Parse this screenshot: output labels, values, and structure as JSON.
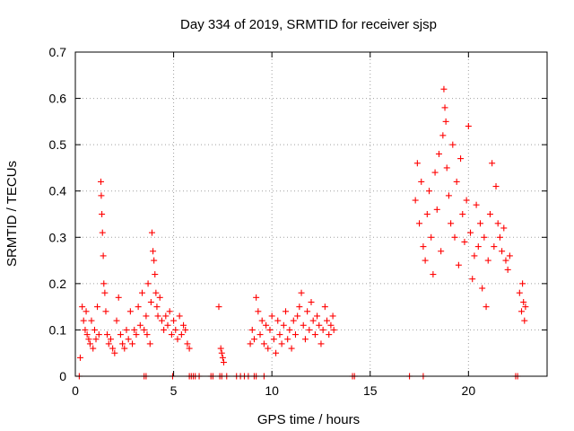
{
  "chart_data": {
    "type": "scatter",
    "title": "Day 334 of 2019, SRMTID for receiver sjsp",
    "xlabel": "GPS time / hours",
    "ylabel": "SRMTID / TECUs",
    "xlim": [
      0,
      24
    ],
    "ylim": [
      0,
      0.7
    ],
    "xticks": [
      0,
      5,
      10,
      15,
      20
    ],
    "yticks": [
      0,
      0.1,
      0.2,
      0.3,
      0.4,
      0.5,
      0.6,
      0.7
    ],
    "grid": true,
    "marker": "+",
    "series": [
      {
        "name": "SRMTID",
        "color": "#ff0000",
        "x": [
          0.25,
          0.35,
          0.42,
          0.5,
          0.55,
          0.6,
          0.68,
          0.75,
          0.82,
          0.9,
          0.98,
          1.05,
          1.12,
          1.2,
          1.3,
          1.32,
          1.35,
          1.38,
          1.42,
          1.45,
          1.5,
          1.55,
          1.62,
          1.7,
          1.8,
          1.9,
          2.0,
          2.1,
          2.2,
          2.3,
          2.4,
          2.5,
          2.6,
          2.7,
          2.8,
          2.9,
          3.0,
          3.1,
          3.2,
          3.3,
          3.4,
          3.5,
          3.6,
          3.65,
          3.7,
          3.8,
          3.85,
          3.9,
          3.95,
          4.0,
          4.05,
          4.1,
          4.15,
          4.2,
          4.3,
          4.4,
          4.5,
          4.6,
          4.7,
          4.8,
          4.9,
          5.0,
          5.1,
          5.2,
          5.3,
          5.4,
          5.5,
          5.6,
          5.7,
          5.8,
          7.3,
          7.4,
          7.45,
          7.5,
          7.55,
          8.9,
          9.0,
          9.1,
          9.2,
          9.3,
          9.4,
          9.5,
          9.6,
          9.7,
          9.8,
          9.9,
          10.0,
          10.1,
          10.2,
          10.3,
          10.4,
          10.5,
          10.6,
          10.7,
          10.8,
          10.9,
          11.0,
          11.1,
          11.2,
          11.3,
          11.4,
          11.5,
          11.6,
          11.7,
          11.8,
          11.9,
          12.0,
          12.1,
          12.2,
          12.3,
          12.4,
          12.5,
          12.6,
          12.7,
          12.8,
          12.9,
          13.0,
          13.1,
          13.15,
          17.3,
          17.4,
          17.5,
          17.6,
          17.7,
          17.8,
          17.9,
          18.0,
          18.1,
          18.2,
          18.3,
          18.4,
          18.5,
          18.6,
          18.7,
          18.75,
          18.8,
          18.85,
          18.9,
          19.0,
          19.1,
          19.2,
          19.3,
          19.4,
          19.5,
          19.6,
          19.7,
          19.8,
          19.9,
          20.0,
          20.1,
          20.2,
          20.3,
          20.4,
          20.5,
          20.6,
          20.7,
          20.8,
          20.9,
          21.0,
          21.1,
          21.2,
          21.3,
          21.4,
          21.5,
          21.6,
          21.7,
          21.8,
          21.9,
          22.0,
          22.1,
          22.6,
          22.7,
          22.75,
          22.8,
          22.85,
          22.9
        ],
        "y": [
          0.04,
          0.15,
          0.12,
          0.1,
          0.14,
          0.09,
          0.08,
          0.07,
          0.12,
          0.06,
          0.1,
          0.08,
          0.15,
          0.09,
          0.42,
          0.39,
          0.35,
          0.31,
          0.26,
          0.2,
          0.18,
          0.14,
          0.09,
          0.07,
          0.08,
          0.06,
          0.05,
          0.12,
          0.17,
          0.09,
          0.07,
          0.06,
          0.1,
          0.08,
          0.14,
          0.07,
          0.1,
          0.09,
          0.15,
          0.11,
          0.18,
          0.1,
          0.13,
          0.09,
          0.2,
          0.07,
          0.16,
          0.31,
          0.27,
          0.25,
          0.22,
          0.18,
          0.15,
          0.13,
          0.17,
          0.12,
          0.1,
          0.13,
          0.11,
          0.14,
          0.09,
          0.12,
          0.1,
          0.08,
          0.13,
          0.09,
          0.11,
          0.1,
          0.07,
          0.06,
          0.15,
          0.06,
          0.05,
          0.04,
          0.03,
          0.07,
          0.1,
          0.08,
          0.17,
          0.14,
          0.09,
          0.12,
          0.07,
          0.11,
          0.06,
          0.1,
          0.13,
          0.08,
          0.05,
          0.12,
          0.09,
          0.07,
          0.11,
          0.14,
          0.08,
          0.1,
          0.06,
          0.12,
          0.09,
          0.13,
          0.15,
          0.18,
          0.11,
          0.08,
          0.14,
          0.1,
          0.16,
          0.12,
          0.09,
          0.13,
          0.11,
          0.07,
          0.1,
          0.15,
          0.12,
          0.09,
          0.11,
          0.13,
          0.1,
          0.38,
          0.46,
          0.33,
          0.42,
          0.28,
          0.25,
          0.35,
          0.4,
          0.3,
          0.22,
          0.44,
          0.36,
          0.48,
          0.27,
          0.52,
          0.62,
          0.58,
          0.55,
          0.45,
          0.39,
          0.33,
          0.5,
          0.3,
          0.42,
          0.24,
          0.47,
          0.35,
          0.29,
          0.38,
          0.54,
          0.31,
          0.21,
          0.26,
          0.37,
          0.28,
          0.33,
          0.19,
          0.3,
          0.15,
          0.25,
          0.35,
          0.46,
          0.28,
          0.41,
          0.33,
          0.3,
          0.27,
          0.32,
          0.25,
          0.23,
          0.26,
          0.18,
          0.14,
          0.2,
          0.16,
          0.12,
          0.15
        ],
        "zero_x": [
          0.2,
          3.5,
          3.6,
          4.95,
          5.8,
          5.9,
          6.0,
          6.1,
          6.3,
          6.9,
          7.0,
          7.35,
          7.45,
          7.7,
          8.2,
          8.4,
          8.6,
          8.8,
          9.1,
          9.2,
          9.6,
          14.1,
          14.2,
          17.0,
          17.7,
          22.4,
          22.5
        ]
      }
    ]
  }
}
